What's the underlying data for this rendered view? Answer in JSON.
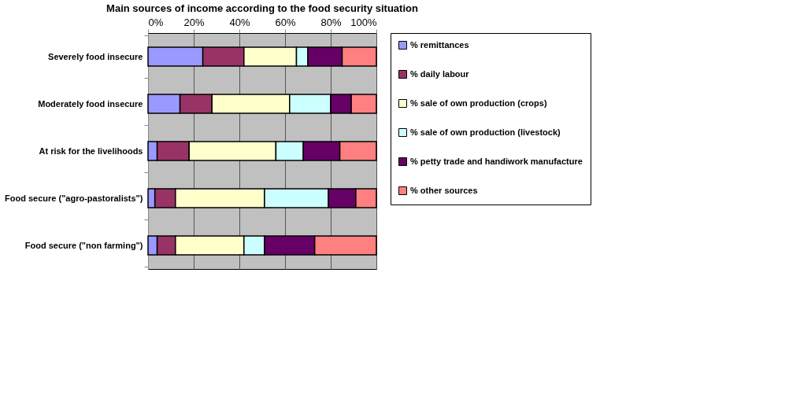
{
  "chart_data": {
    "type": "bar",
    "orientation": "horizontal",
    "stacked": true,
    "title": "Main sources of income according to the food security situation",
    "categories": [
      "Severely food insecure",
      "Moderately food insecure",
      "At risk for the livelihoods",
      "Food secure (\"agro-pastoralists\")",
      "Food secure (\"non farming\")"
    ],
    "series": [
      {
        "name": "% remittances",
        "color": "#9999ff",
        "values": [
          24,
          14,
          4,
          3,
          4
        ]
      },
      {
        "name": "% daily labour",
        "color": "#993366",
        "values": [
          18,
          14,
          14,
          9,
          8
        ]
      },
      {
        "name": "% sale of own production (crops)",
        "color": "#ffffcc",
        "values": [
          23,
          34,
          38,
          39,
          30
        ]
      },
      {
        "name": "% sale of own production (livestock)",
        "color": "#ccffff",
        "values": [
          5,
          18,
          12,
          28,
          9
        ]
      },
      {
        "name": "% petty trade and handiwork manufacture",
        "color": "#660066",
        "values": [
          15,
          9,
          16,
          12,
          22
        ]
      },
      {
        "name": "% other sources",
        "color": "#ff8080",
        "values": [
          15,
          11,
          16,
          9,
          27
        ]
      }
    ],
    "xlim": [
      0,
      100
    ],
    "xticks": [
      {
        "value": 0,
        "label": "0%"
      },
      {
        "value": 20,
        "label": "20%"
      },
      {
        "value": 40,
        "label": "40%"
      },
      {
        "value": 60,
        "label": "60%"
      },
      {
        "value": 80,
        "label": "80%"
      },
      {
        "value": 100,
        "label": "100%"
      }
    ],
    "grid": "x",
    "legend": "right"
  }
}
